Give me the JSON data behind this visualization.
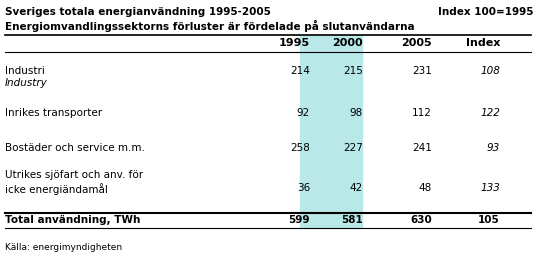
{
  "title_left": "Sveriges totala energianvändning 1995-2005",
  "title_right": "Index 100=1995",
  "subtitle": "Energiomvandlingssektorns förluster är fördelade på slutanvändarna",
  "columns": [
    "",
    "1995",
    "2000",
    "2005",
    "Index"
  ],
  "rows": [
    {
      "label": "Industri",
      "sublabel": "Industry",
      "values": [
        "214",
        "215",
        "231",
        "108"
      ]
    },
    {
      "label": "Inrikes transporter",
      "sublabel": "",
      "values": [
        "92",
        "98",
        "112",
        "122"
      ]
    },
    {
      "label": "Bostäder och service m.m.",
      "sublabel": "",
      "values": [
        "258",
        "227",
        "241",
        "93"
      ]
    },
    {
      "label": "Utrikes sjöfart och anv. för\nicke energiändamål",
      "sublabel": "",
      "values": [
        "36",
        "42",
        "48",
        "133"
      ]
    }
  ],
  "total_row": {
    "label": "Total användning, TWh",
    "values": [
      "599",
      "581",
      "630",
      "105"
    ]
  },
  "footer": "Källa: energimyndigheten",
  "highlight_color": "#b8e8e8",
  "bg_color": "#ffffff",
  "title_fontsize": 7.5,
  "data_fontsize": 7.5,
  "header_fontsize": 8.0
}
